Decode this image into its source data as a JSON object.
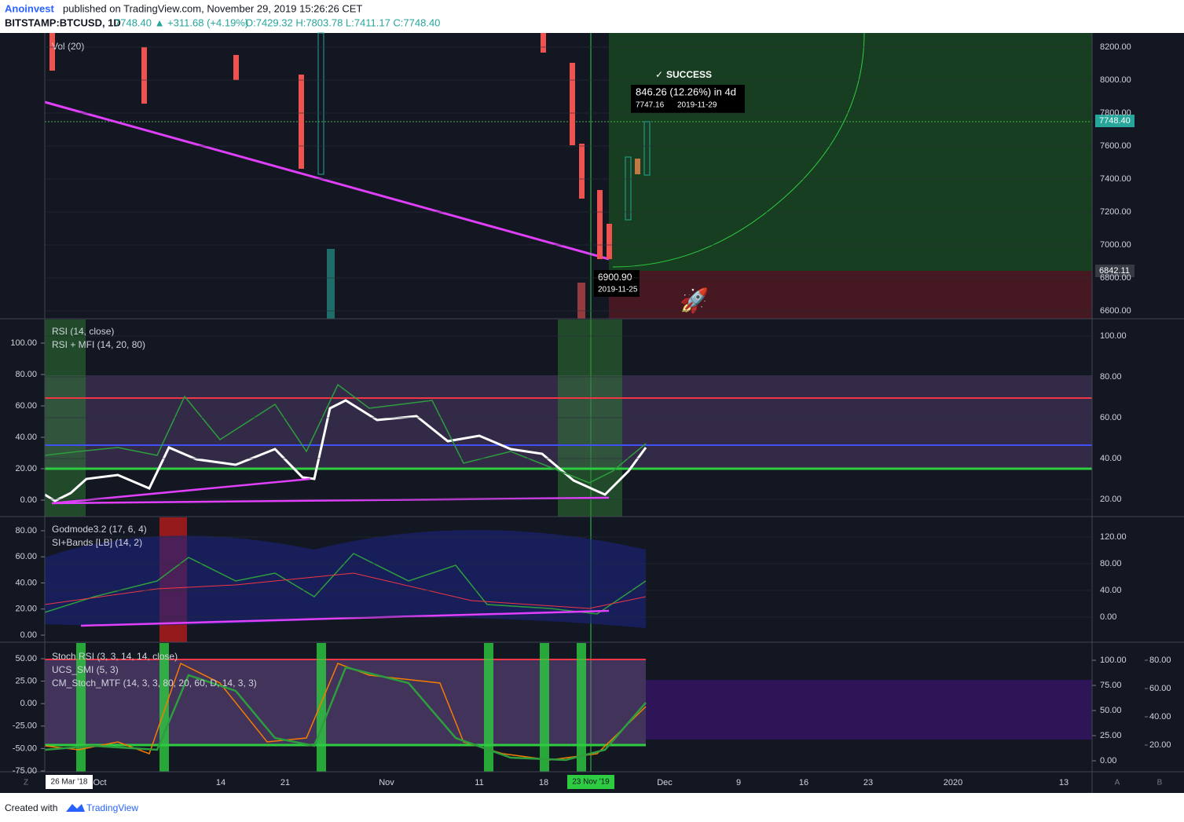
{
  "header": {
    "author": "Anoinvest",
    "published": "published on TradingView.com, November 29, 2019 15:26:26 CET",
    "symbol": "BITSTAMP:BTCUSD, 1D",
    "quote": "7748.40 ▲ +311.68 (+4.19%)",
    "ohlc": "O:7429.32 H:7803.78 L:7411.17 C:7748.40"
  },
  "panes": [
    {
      "legend": [
        "Vol (20)"
      ],
      "axes": [
        {
          "side": "right",
          "ylim": [
            6552,
            8286
          ],
          "yticks": [
            {
              "value": 6600,
              "label": "6600.00"
            },
            {
              "value": 6800,
              "label": "6800.00"
            },
            {
              "value": 7000,
              "label": "7000.00"
            },
            {
              "value": 7200,
              "label": "7200.00"
            },
            {
              "value": 7400,
              "label": "7400.00"
            },
            {
              "value": 7600,
              "label": "7600.00"
            },
            {
              "value": 7800,
              "label": "7800.00"
            },
            {
              "value": 8000,
              "label": "8000.00"
            },
            {
              "value": 8200,
              "label": "8200.00"
            }
          ]
        }
      ]
    },
    {
      "legend": [
        "RSI (14, close)",
        "RSI + MFI (14, 20, 80)"
      ],
      "axes": [
        {
          "side": "right",
          "ylim": [
            11.5,
            108.1
          ],
          "yticks": [
            {
              "value": 20,
              "label": "20.00"
            },
            {
              "value": 40,
              "label": "40.00"
            },
            {
              "value": 60,
              "label": "60.00"
            },
            {
              "value": 80,
              "label": "80.00"
            },
            {
              "value": 100,
              "label": "100.00"
            }
          ]
        },
        {
          "side": "left",
          "ylim": [
            -10.5,
            115
          ],
          "yticks": [
            {
              "value": 0,
              "label": "0.00"
            },
            {
              "value": 20,
              "label": "20.00"
            },
            {
              "value": 40,
              "label": "40.00"
            },
            {
              "value": 60,
              "label": "60.00"
            },
            {
              "value": 80,
              "label": "80.00"
            },
            {
              "value": 100,
              "label": "100.00"
            }
          ]
        }
      ]
    },
    {
      "legend": [
        "Godmode3.2 (17, 6, 4)",
        "SI+Bands [LB] (14, 2)"
      ],
      "axes": [
        {
          "side": "right",
          "ylim": [
            -37.6,
            149.4
          ],
          "yticks": [
            {
              "value": 0,
              "label": "0.00"
            },
            {
              "value": 40,
              "label": "40.00"
            },
            {
              "value": 80,
              "label": "80.00"
            },
            {
              "value": 120,
              "label": "120.00"
            }
          ]
        },
        {
          "side": "left",
          "ylim": [
            -5.4,
            90.2
          ],
          "yticks": [
            {
              "value": 0,
              "label": "0.00"
            },
            {
              "value": 20,
              "label": "20.00"
            },
            {
              "value": 40,
              "label": "40.00"
            },
            {
              "value": 60,
              "label": "60.00"
            },
            {
              "value": 80,
              "label": "80.00"
            }
          ]
        }
      ]
    },
    {
      "legend": [
        "Stoch RSI (3, 3, 14, 14, close)",
        "UCS_SMI (5, 3)",
        "CM_Stoch_MTF (14, 3, 3, 80, 20, 60, D, 14, 3, 3)"
      ],
      "axes": [
        {
          "side": "right",
          "ylim": [
            -10.9,
            117.2
          ],
          "yticks": [
            {
              "value": 0,
              "label": "0.00"
            },
            {
              "value": 25,
              "label": "25.00"
            },
            {
              "value": 50,
              "label": "50.00"
            },
            {
              "value": 75,
              "label": "75.00"
            },
            {
              "value": 100,
              "label": "100.00"
            }
          ]
        },
        {
          "side": "right2",
          "ylim": [
            1.1,
            92.2
          ],
          "yticks": [
            {
              "value": 20,
              "label": "20.00"
            },
            {
              "value": 40,
              "label": "40.00"
            },
            {
              "value": 60,
              "label": "60.00"
            },
            {
              "value": 80,
              "label": "80.00"
            }
          ]
        },
        {
          "side": "left",
          "ylim": [
            -75.9,
            67.5
          ],
          "yticks": [
            {
              "value": -75,
              "label": "-75.00"
            },
            {
              "value": -50,
              "label": "-50.00"
            },
            {
              "value": -25,
              "label": "-25.00"
            },
            {
              "value": 0,
              "label": "0.00"
            },
            {
              "value": 25,
              "label": "25.00"
            },
            {
              "value": 50,
              "label": "50.00"
            }
          ]
        }
      ]
    }
  ],
  "time_axis": {
    "labels": [
      "Oct",
      "14",
      "21",
      "Nov",
      "11",
      "18",
      "Dec",
      "9",
      "16",
      "23",
      "2020",
      "13"
    ],
    "start_marker": "26 Mar '18",
    "cursor_marker": "23 Nov '19",
    "corners": [
      "Z",
      "A",
      "B"
    ]
  },
  "annotations": {
    "status": "SUCCESS",
    "gain": "846.26 (12.26%) in 4d",
    "target_price": "7747.16",
    "target_date": "2019-11-29",
    "entry_price": "6900.90",
    "entry_date": "2019-11-25",
    "last_price": "7748.40",
    "stop_price": "6842.11"
  },
  "footer": {
    "prefix": "Created with",
    "brand": "TradingView"
  }
}
